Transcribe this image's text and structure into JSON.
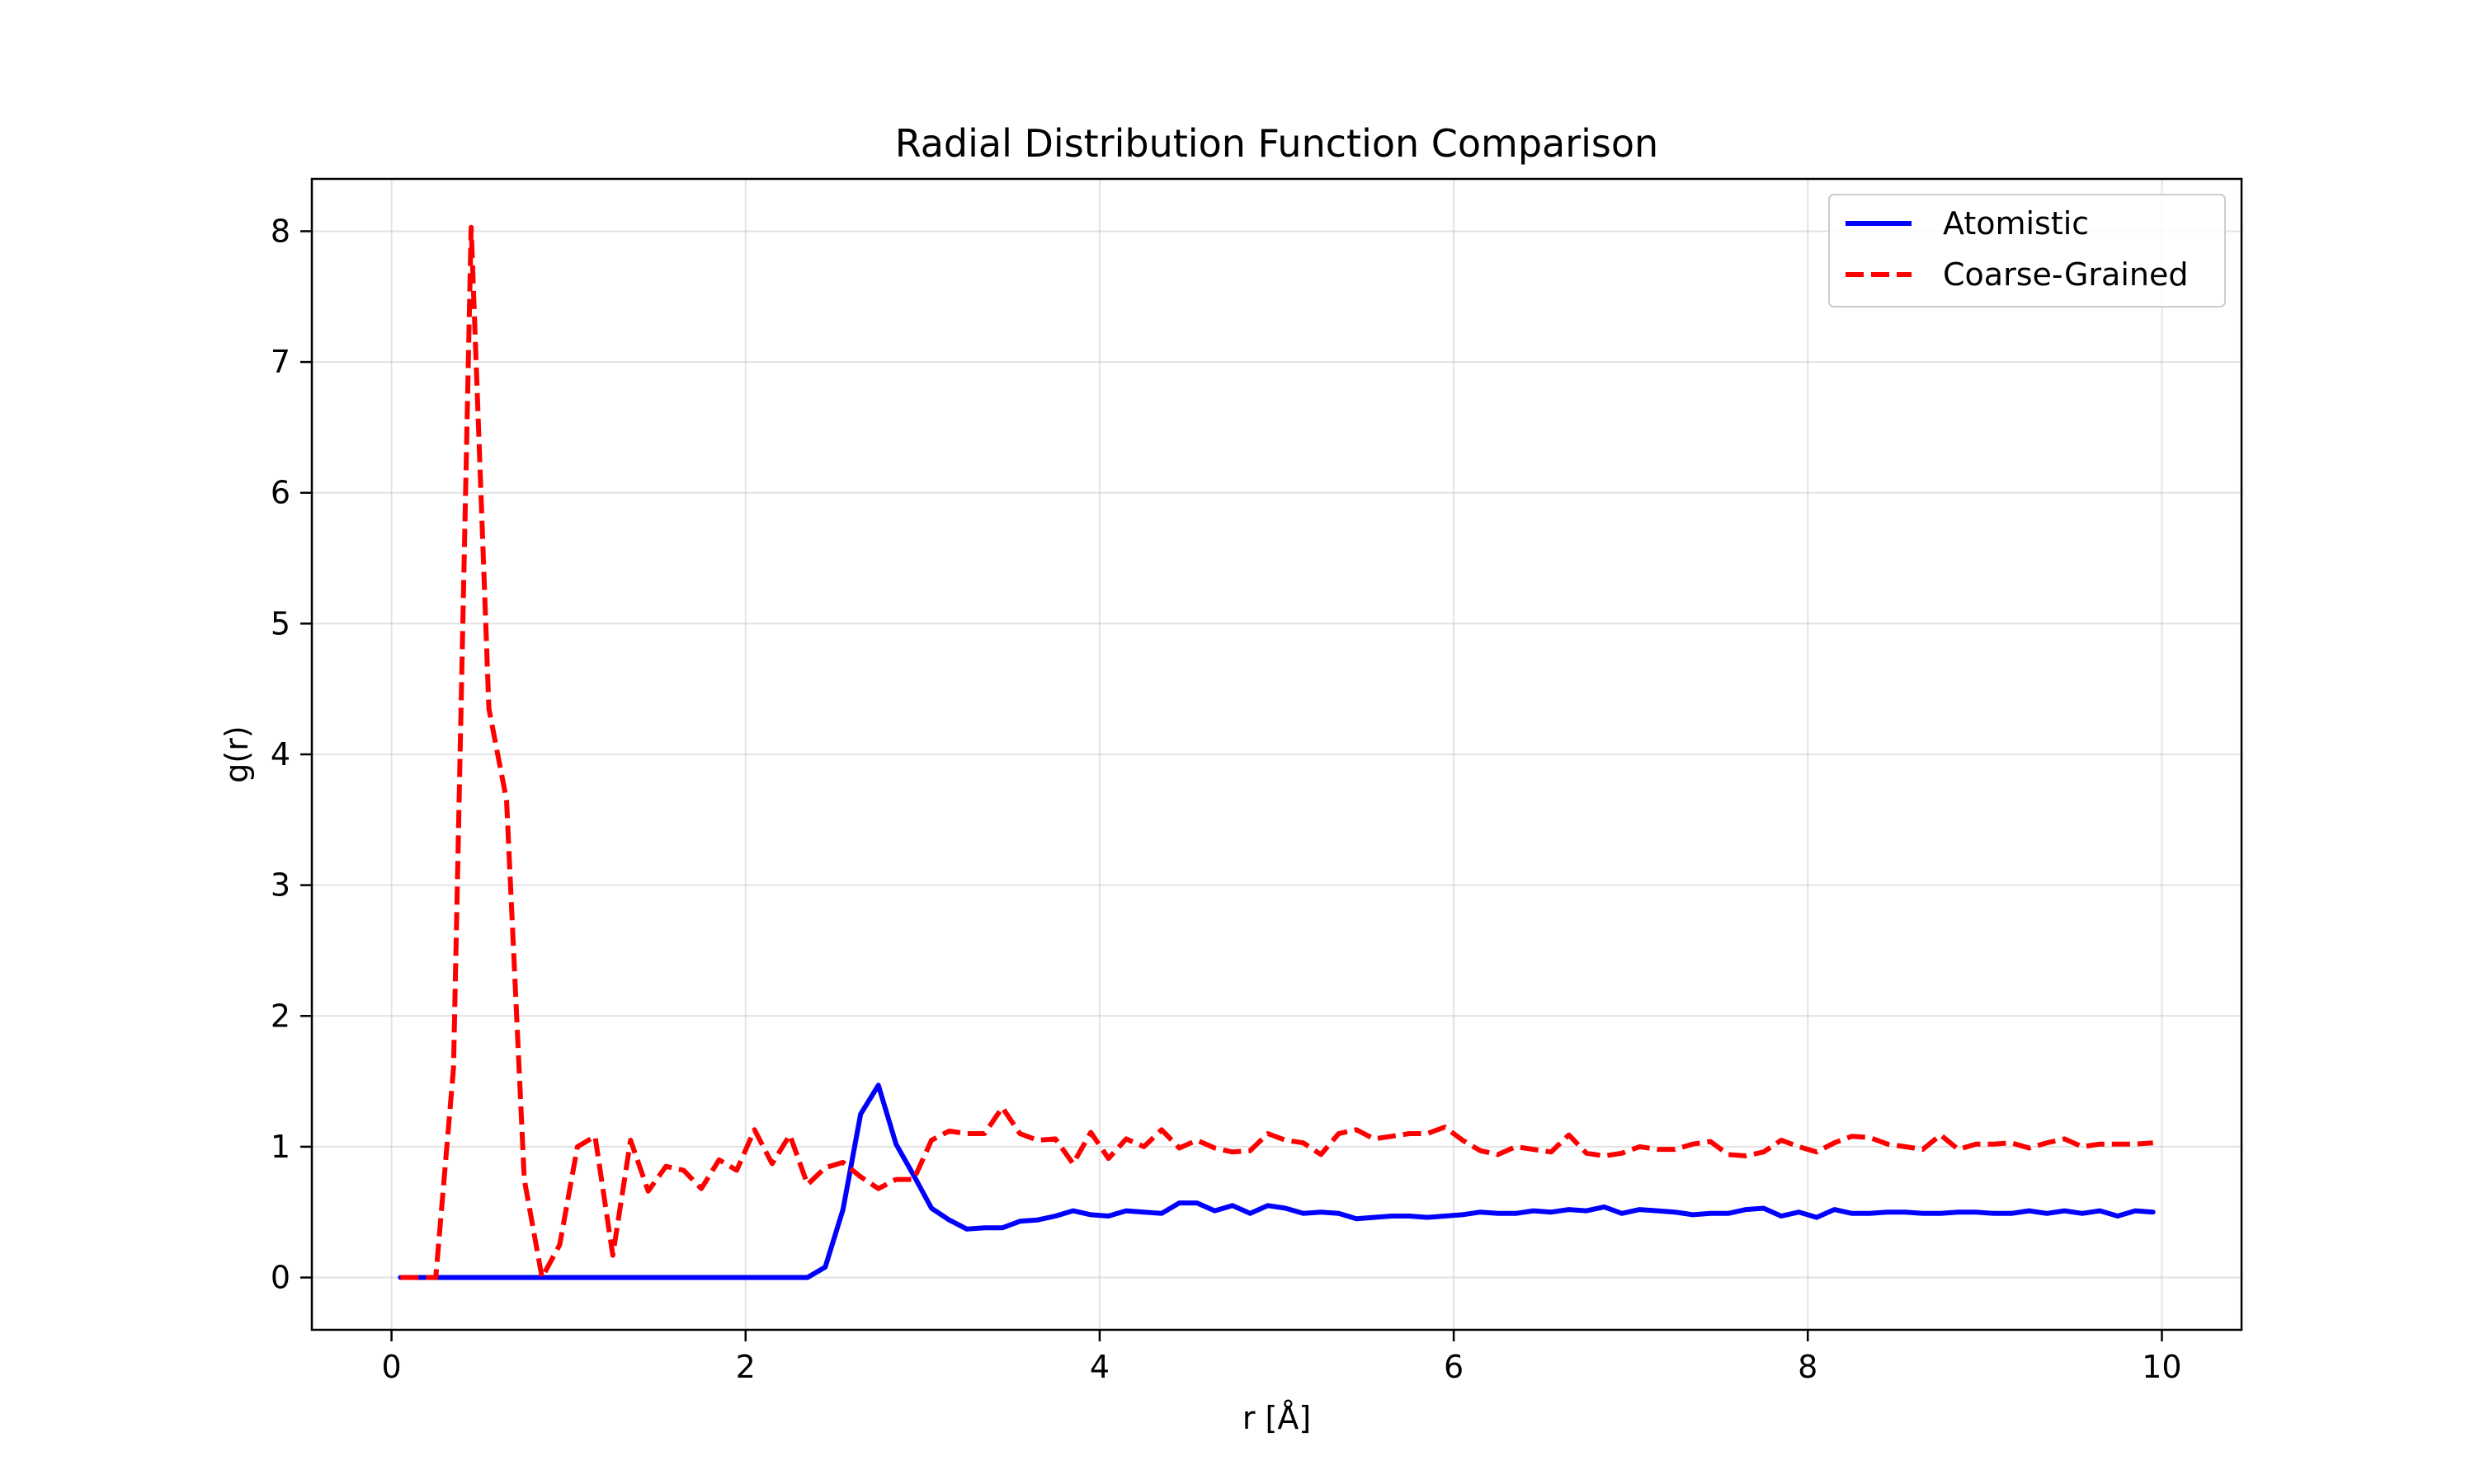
{
  "chart_data": {
    "type": "line",
    "title": "Radial Distribution Function Comparison",
    "xlabel": "r [Å]",
    "ylabel": "g(r)",
    "xlim": [
      -0.45,
      10.45
    ],
    "ylim": [
      -0.4,
      8.4
    ],
    "xticks": [
      0,
      2,
      4,
      6,
      8,
      10
    ],
    "yticks": [
      0,
      1,
      2,
      3,
      4,
      5,
      6,
      7,
      8
    ],
    "grid": true,
    "legend_position": "top-right",
    "series": [
      {
        "name": "Atomistic",
        "color": "#0000ff",
        "style": "solid",
        "x": [
          0.05,
          0.15,
          0.25,
          0.35,
          0.45,
          0.55,
          0.65,
          0.75,
          0.85,
          0.95,
          1.05,
          1.15,
          1.25,
          1.35,
          1.45,
          1.55,
          1.65,
          1.75,
          1.85,
          1.95,
          2.05,
          2.15,
          2.25,
          2.35,
          2.45,
          2.55,
          2.65,
          2.75,
          2.85,
          2.95,
          3.05,
          3.15,
          3.25,
          3.35,
          3.45,
          3.55,
          3.65,
          3.75,
          3.85,
          3.95,
          4.05,
          4.15,
          4.25,
          4.35,
          4.45,
          4.55,
          4.65,
          4.75,
          4.85,
          4.95,
          5.05,
          5.15,
          5.25,
          5.35,
          5.45,
          5.55,
          5.65,
          5.75,
          5.85,
          5.95,
          6.05,
          6.15,
          6.25,
          6.35,
          6.45,
          6.55,
          6.65,
          6.75,
          6.85,
          6.95,
          7.05,
          7.15,
          7.25,
          7.35,
          7.45,
          7.55,
          7.65,
          7.75,
          7.85,
          7.95,
          8.05,
          8.15,
          8.25,
          8.35,
          8.45,
          8.55,
          8.65,
          8.75,
          8.85,
          8.95,
          9.05,
          9.15,
          9.25,
          9.35,
          9.45,
          9.55,
          9.65,
          9.75,
          9.85,
          9.95
        ],
        "y": [
          0,
          0,
          0,
          0,
          0,
          0,
          0,
          0,
          0,
          0,
          0,
          0,
          0,
          0,
          0,
          0,
          0,
          0,
          0,
          0,
          0,
          0,
          0,
          0,
          0.08,
          0.52,
          1.25,
          1.47,
          1.02,
          0.78,
          0.53,
          0.44,
          0.37,
          0.38,
          0.38,
          0.43,
          0.44,
          0.47,
          0.51,
          0.48,
          0.47,
          0.51,
          0.5,
          0.49,
          0.57,
          0.57,
          0.51,
          0.55,
          0.49,
          0.55,
          0.53,
          0.49,
          0.5,
          0.49,
          0.45,
          0.46,
          0.47,
          0.47,
          0.46,
          0.47,
          0.48,
          0.5,
          0.49,
          0.49,
          0.51,
          0.5,
          0.52,
          0.51,
          0.54,
          0.49,
          0.52,
          0.51,
          0.5,
          0.48,
          0.49,
          0.49,
          0.52,
          0.53,
          0.47,
          0.5,
          0.46,
          0.52,
          0.49,
          0.49,
          0.5,
          0.5,
          0.49,
          0.49,
          0.5,
          0.5,
          0.49,
          0.49,
          0.51,
          0.49,
          0.51,
          0.49,
          0.51,
          0.47,
          0.51,
          0.5
        ]
      },
      {
        "name": "Coarse-Grained",
        "color": "#ff0000",
        "style": "dashed",
        "x": [
          0.05,
          0.15,
          0.25,
          0.35,
          0.45,
          0.55,
          0.65,
          0.75,
          0.85,
          0.95,
          1.05,
          1.15,
          1.25,
          1.35,
          1.45,
          1.55,
          1.65,
          1.75,
          1.85,
          1.95,
          2.05,
          2.15,
          2.25,
          2.35,
          2.45,
          2.55,
          2.65,
          2.75,
          2.85,
          2.95,
          3.05,
          3.15,
          3.25,
          3.35,
          3.45,
          3.55,
          3.65,
          3.75,
          3.85,
          3.95,
          4.05,
          4.15,
          4.25,
          4.35,
          4.45,
          4.55,
          4.65,
          4.75,
          4.85,
          4.95,
          5.05,
          5.15,
          5.25,
          5.35,
          5.45,
          5.55,
          5.65,
          5.75,
          5.85,
          5.95,
          6.05,
          6.15,
          6.25,
          6.35,
          6.45,
          6.55,
          6.65,
          6.75,
          6.85,
          6.95,
          7.05,
          7.15,
          7.25,
          7.35,
          7.45,
          7.55,
          7.65,
          7.75,
          7.85,
          7.95,
          8.05,
          8.15,
          8.25,
          8.35,
          8.45,
          8.55,
          8.65,
          8.75,
          8.85,
          8.95,
          9.05,
          9.15,
          9.25,
          9.35,
          9.45,
          9.55,
          9.65,
          9.75,
          9.85,
          9.95
        ],
        "y": [
          0,
          0,
          0,
          1.6,
          8.03,
          4.35,
          3.65,
          0.75,
          0,
          0.25,
          1.0,
          1.08,
          0.17,
          1.05,
          0.66,
          0.85,
          0.82,
          0.68,
          0.9,
          0.82,
          1.13,
          0.87,
          1.09,
          0.71,
          0.84,
          0.88,
          0.77,
          0.68,
          0.75,
          0.75,
          1.05,
          1.12,
          1.1,
          1.1,
          1.3,
          1.1,
          1.05,
          1.06,
          0.87,
          1.11,
          0.91,
          1.06,
          1.0,
          1.13,
          0.99,
          1.05,
          0.99,
          0.96,
          0.97,
          1.1,
          1.05,
          1.03,
          0.94,
          1.1,
          1.13,
          1.06,
          1.08,
          1.1,
          1.1,
          1.15,
          1.05,
          0.97,
          0.94,
          1.0,
          0.98,
          0.96,
          1.09,
          0.95,
          0.93,
          0.95,
          1.0,
          0.98,
          0.98,
          1.02,
          1.04,
          0.94,
          0.93,
          0.96,
          1.05,
          1.0,
          0.96,
          1.03,
          1.08,
          1.07,
          1.02,
          1.0,
          0.98,
          1.09,
          0.98,
          1.02,
          1.02,
          1.03,
          0.99,
          1.03,
          1.06,
          1.0,
          1.02,
          1.02,
          1.02,
          1.03
        ]
      }
    ]
  }
}
